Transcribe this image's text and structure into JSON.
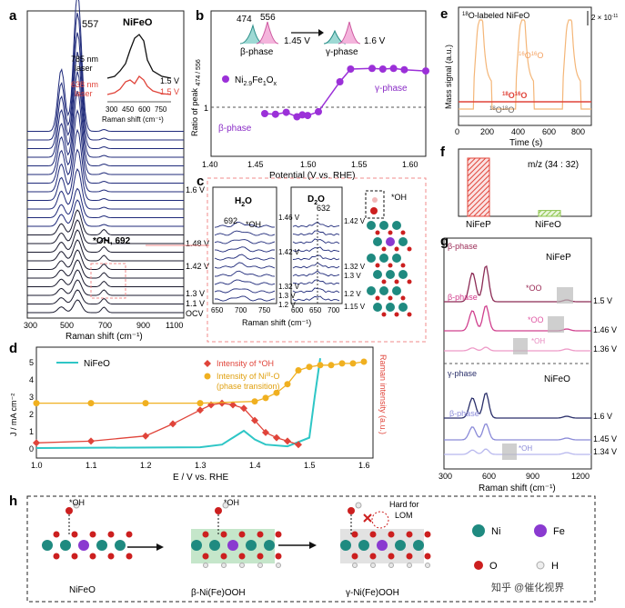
{
  "panel_letters": {
    "a": "a",
    "b": "b",
    "c": "c",
    "d": "d",
    "e": "e",
    "f": "f",
    "g": "g",
    "h": "h"
  },
  "chart_data": [
    {
      "panel": "a",
      "type": "line",
      "title": "NiFeO",
      "xlabel": "Raman shift (cm⁻¹)",
      "ylabel": "",
      "xlim": [
        300,
        1100
      ],
      "xticks": [
        "300",
        "500",
        "700",
        "900",
        "1100"
      ],
      "annotations": {
        "peak557": "557",
        "oh": "*OH, 692",
        "v16": "1.6 V",
        "v148": "1.48 V",
        "v142": "1.42 V",
        "v13": "1.3 V",
        "v11": "1.1 V",
        "ocv": "OCV"
      },
      "inset": {
        "laser785": "785 nm",
        "laser785b": "laser",
        "laser638": "638 nm",
        "laser638b": "laser",
        "v1": "1.5 V",
        "v2": "1.5 V",
        "xticks": [
          "300",
          "450",
          "600",
          "750"
        ],
        "xlabel": "Raman shift (cm⁻¹)"
      },
      "peaks": [
        557,
        474,
        692
      ],
      "colors": {
        "main": "#1f2a7a",
        "black": "#111111",
        "red": "#e0443a"
      }
    },
    {
      "panel": "b",
      "type": "scatter",
      "xlabel": "Potential (V vs. RHE)",
      "ylabel": "Ratio of peak ",
      "ylabel_sub": "474 / 556",
      "xlim": [
        1.4,
        1.6
      ],
      "xticks": [
        "1.40",
        "1.45",
        "1.50",
        "1.55",
        "1.60"
      ],
      "ytick1": "1",
      "legend": "Ni",
      "legend_sub1": "2.9",
      "legend_mid": "Fe",
      "legend_sub2": "1",
      "legend_end": "O",
      "legend_sub3": "x",
      "phases": {
        "beta": "β-phase",
        "gamma": "γ-phase"
      },
      "inset_labels": {
        "p474": "474",
        "p556": "556",
        "v145": "1.45 V",
        "v16": "1.6 V",
        "beta": "β-phase",
        "gamma": "γ-phase"
      },
      "x": [
        1.45,
        1.46,
        1.47,
        1.48,
        1.485,
        1.49,
        1.5,
        1.52,
        1.53,
        1.55,
        1.56,
        1.57,
        1.58,
        1.6
      ],
      "y": [
        0.9,
        0.89,
        0.92,
        0.85,
        0.88,
        0.87,
        0.93,
        1.4,
        1.6,
        1.61,
        1.6,
        1.61,
        1.59,
        1.57
      ],
      "colors": {
        "points": "#9b30d8",
        "line": "#9b30d8",
        "phase_text": "#8a2cc6"
      }
    },
    {
      "panel": "c",
      "type": "line",
      "xlabel": "Raman shift (cm⁻¹)",
      "h2o": "H",
      "h2o_sub": "2",
      "h2o_end": "O",
      "d2o": "D",
      "d2o_sub": "2",
      "d2o_end": "O",
      "p692": "692",
      "oh": "*OH",
      "p632": "632",
      "h2o_ticks": [
        "650",
        "700",
        "750"
      ],
      "d2o_ticks": [
        "600",
        "650",
        "700"
      ],
      "h2o_voltages": [
        "1.46 V",
        "1.42 V",
        "1.32 V",
        "1.3 V",
        "1.2 V"
      ],
      "d2o_voltages": [
        "1.42 V",
        "1.32 V",
        "1.3 V",
        "1.2 V",
        "1.15 V"
      ],
      "struct_label": "*OH"
    },
    {
      "panel": "d",
      "type": "line",
      "xlabel": "E / V vs. RHE",
      "ylabel": "J / mA cm⁻²",
      "y2label": "Raman intensity (a.u.)",
      "xlim": [
        1.0,
        1.6
      ],
      "ylim": [
        -0.5,
        5.5
      ],
      "xticks": [
        "1.0",
        "1.1",
        "1.2",
        "1.3",
        "1.4",
        "1.5",
        "1.6"
      ],
      "yticks": [
        "0",
        "1",
        "2",
        "3",
        "4",
        "5"
      ],
      "legend": {
        "nifeo": "NiFeO",
        "oh": "Intensity of *OH",
        "niiii": "Intensity of Ni",
        "niiii_sup": "III",
        "niiii_end": "-O",
        "phase": "(phase transition)"
      },
      "series": [
        {
          "name": "NiFeO",
          "x": [
            1.0,
            1.3,
            1.34,
            1.36,
            1.38,
            1.4,
            1.42,
            1.46,
            1.5,
            1.51,
            1.52
          ],
          "values": [
            0,
            0.05,
            0.2,
            0.6,
            1.0,
            0.5,
            0.2,
            0.1,
            0.6,
            3.0,
            5.2
          ]
        },
        {
          "name": "Intensity of *OH",
          "x": [
            1.0,
            1.1,
            1.2,
            1.25,
            1.3,
            1.32,
            1.34,
            1.36,
            1.38,
            1.4,
            1.42,
            1.44,
            1.46,
            1.48
          ],
          "values": [
            0.3,
            0.4,
            0.7,
            1.4,
            2.2,
            2.5,
            2.6,
            2.5,
            2.3,
            1.6,
            0.9,
            0.6,
            0.4,
            0.2
          ]
        },
        {
          "name": "Intensity of Ni(III)-O",
          "x": [
            1.0,
            1.1,
            1.2,
            1.3,
            1.4,
            1.42,
            1.44,
            1.46,
            1.48,
            1.5,
            1.52,
            1.54,
            1.56,
            1.58,
            1.6
          ],
          "values": [
            2.6,
            2.6,
            2.6,
            2.6,
            2.7,
            2.9,
            3.2,
            3.7,
            4.5,
            4.7,
            4.8,
            4.8,
            4.9,
            4.9,
            5.0
          ]
        }
      ],
      "colors": {
        "nifeo": "#2ec6c6",
        "oh": "#e0443a",
        "niiii": "#f0b020"
      }
    },
    {
      "panel": "e",
      "type": "line",
      "xlabel": "Time (s)",
      "ylabel": "Mass signal (a.u.)",
      "xticks": [
        "0",
        "200",
        "400",
        "600",
        "800"
      ],
      "title": "",
      "title_pre": "",
      "title_sup": "18",
      "title_end": "O-labeled NiFeO",
      "scale": "2 × 10",
      "scale_sup": "-11",
      "labels": {
        "o1616a": "16",
        "o1616b": "O",
        "o1616c": "16",
        "o1616d": "O",
        "o1618a": "18",
        "o1618b": "O",
        "o1618c": "16",
        "o1618d": "O",
        "o1818a": "18",
        "o1818b": "O",
        "o1818c": "18",
        "o1818d": "O"
      },
      "peaks_s": [
        130,
        400,
        700
      ],
      "colors": {
        "o16": "#f4b678",
        "o1618": "#e0443a",
        "o1818": "#888888"
      }
    },
    {
      "panel": "f",
      "type": "bar",
      "categories": [
        "NiFeP",
        "NiFeO"
      ],
      "values": [
        1.0,
        0.1
      ],
      "title": "m/z (34 : 32)",
      "colors": {
        "nifep": "#e0443a",
        "nifeo": "#8bc34a"
      }
    },
    {
      "panel": "g",
      "type": "line",
      "xlabel": "Raman shift (cm⁻¹)",
      "xticks": [
        "300",
        "600",
        "900",
        "1200"
      ],
      "top_title": "NiFeP",
      "bottom_title": "NiFeO",
      "labels": {
        "beta1": "β-phase",
        "beta2": "β-phase",
        "oo1": "*OO",
        "oo2": "*OO",
        "oh1": "*OH",
        "gamma": "γ-phase",
        "beta3": "β-phase",
        "oh2": "*OH"
      },
      "voltages": [
        "1.5 V",
        "1.46 V",
        "1.36 V",
        "1.6 V",
        "1.45 V",
        "1.34 V"
      ]
    }
  ],
  "panel_h": {
    "labels": {
      "oh1": "*OH",
      "oh2": "*OH",
      "hard1": "Hard for",
      "hard2": "LOM",
      "nifeo": "NiFeO",
      "beta": "β-Ni(Fe)OOH",
      "gamma": "γ-Ni(Fe)OOH"
    },
    "legend": {
      "ni": "Ni",
      "fe": "Fe",
      "o": "O",
      "h": "H"
    },
    "colors": {
      "ni": "#1f8a80",
      "fe": "#8a3ad0",
      "o": "#cc1f1f",
      "h": "#e8e8e8"
    }
  },
  "watermark": "知乎 @催化视界"
}
